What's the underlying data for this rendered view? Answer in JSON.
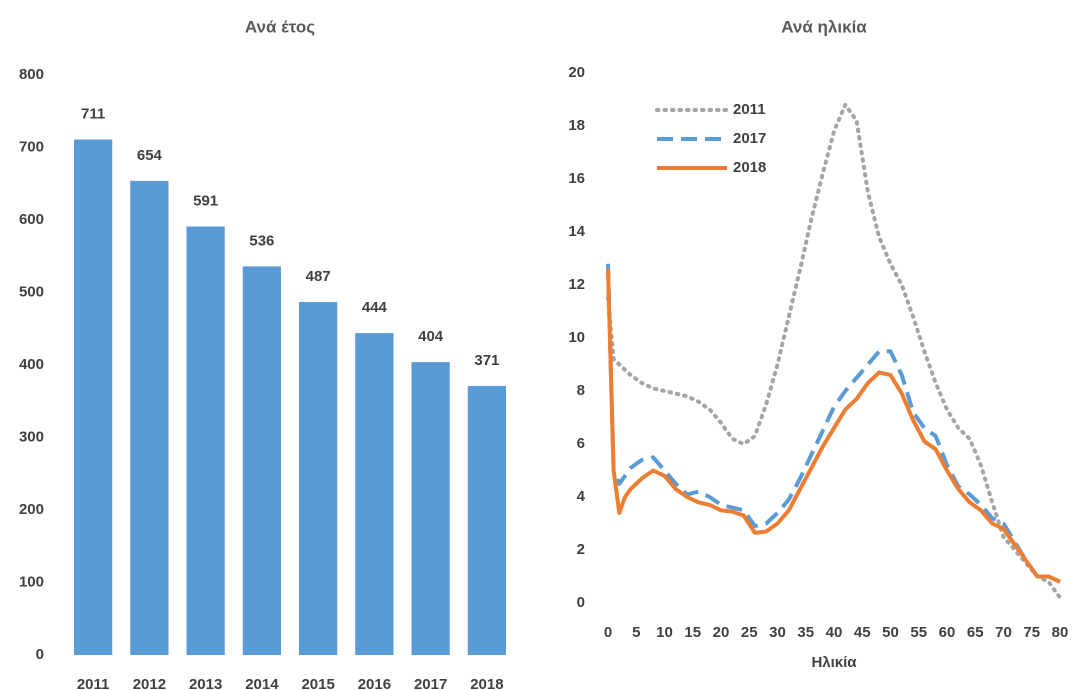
{
  "chart_data": [
    {
      "type": "bar",
      "title": "Ανά έτος",
      "categories": [
        "2011",
        "2012",
        "2013",
        "2014",
        "2015",
        "2016",
        "2017",
        "2018"
      ],
      "values": [
        711,
        654,
        591,
        536,
        487,
        444,
        404,
        371
      ],
      "color": "#5b9bd5",
      "ylim": [
        0,
        800
      ],
      "yticks": [
        0,
        100,
        200,
        300,
        400,
        500,
        600,
        700,
        800
      ],
      "grid": false
    },
    {
      "type": "line",
      "title": "Ανά ηλικία",
      "xlabel": "Ηλικία",
      "x": [
        0,
        1,
        2,
        3,
        4,
        6,
        8,
        10,
        12,
        14,
        16,
        18,
        20,
        22,
        24,
        26,
        28,
        30,
        32,
        34,
        36,
        38,
        40,
        42,
        44,
        46,
        48,
        50,
        52,
        54,
        56,
        58,
        60,
        62,
        64,
        66,
        68,
        70,
        72,
        74,
        76,
        78,
        80
      ],
      "series": [
        {
          "name": "2011",
          "color": "#a5a5a5",
          "style": "dotted",
          "values": [
            11.5,
            9.2,
            9.0,
            8.8,
            8.6,
            8.3,
            8.1,
            8.0,
            7.9,
            7.8,
            7.6,
            7.3,
            6.8,
            6.2,
            6.0,
            6.3,
            7.5,
            9.0,
            10.8,
            12.6,
            14.5,
            16.2,
            17.8,
            18.8,
            18.2,
            15.5,
            13.8,
            12.8,
            12.0,
            10.8,
            9.5,
            8.3,
            7.3,
            6.6,
            6.2,
            5.2,
            3.8,
            2.5,
            2.0,
            1.5,
            1.0,
            0.8,
            0.2
          ]
        },
        {
          "name": "2017",
          "color": "#5b9bd5",
          "style": "dashed",
          "values": [
            12.8,
            5.0,
            4.5,
            4.8,
            5.1,
            5.4,
            5.5,
            5.0,
            4.5,
            4.1,
            4.2,
            4.0,
            3.7,
            3.6,
            3.5,
            2.9,
            3.0,
            3.4,
            3.9,
            4.7,
            5.6,
            6.5,
            7.4,
            8.0,
            8.5,
            9.0,
            9.5,
            9.5,
            8.6,
            7.2,
            6.6,
            6.3,
            5.2,
            4.4,
            4.1,
            3.7,
            3.2,
            3.0,
            2.3,
            1.6,
            1.0,
            1.0,
            0.8
          ]
        },
        {
          "name": "2018",
          "color": "#ed7d31",
          "style": "solid",
          "values": [
            12.6,
            5.0,
            3.4,
            4.0,
            4.3,
            4.7,
            5.0,
            4.8,
            4.3,
            4.0,
            3.8,
            3.7,
            3.5,
            3.45,
            3.3,
            2.65,
            2.7,
            3.0,
            3.5,
            4.3,
            5.1,
            5.9,
            6.6,
            7.3,
            7.7,
            8.3,
            8.7,
            8.6,
            7.9,
            6.9,
            6.1,
            5.8,
            5.0,
            4.3,
            3.8,
            3.5,
            3.0,
            2.8,
            2.2,
            1.6,
            1.0,
            1.0,
            0.8
          ]
        }
      ],
      "xlim": [
        0,
        80
      ],
      "xticks": [
        0,
        5,
        10,
        15,
        20,
        25,
        30,
        35,
        40,
        45,
        50,
        55,
        60,
        65,
        70,
        75,
        80
      ],
      "ylim": [
        0,
        20
      ],
      "yticks": [
        0,
        2,
        4,
        6,
        8,
        10,
        12,
        14,
        16,
        18,
        20
      ],
      "grid": false,
      "legend": "upper left"
    }
  ]
}
